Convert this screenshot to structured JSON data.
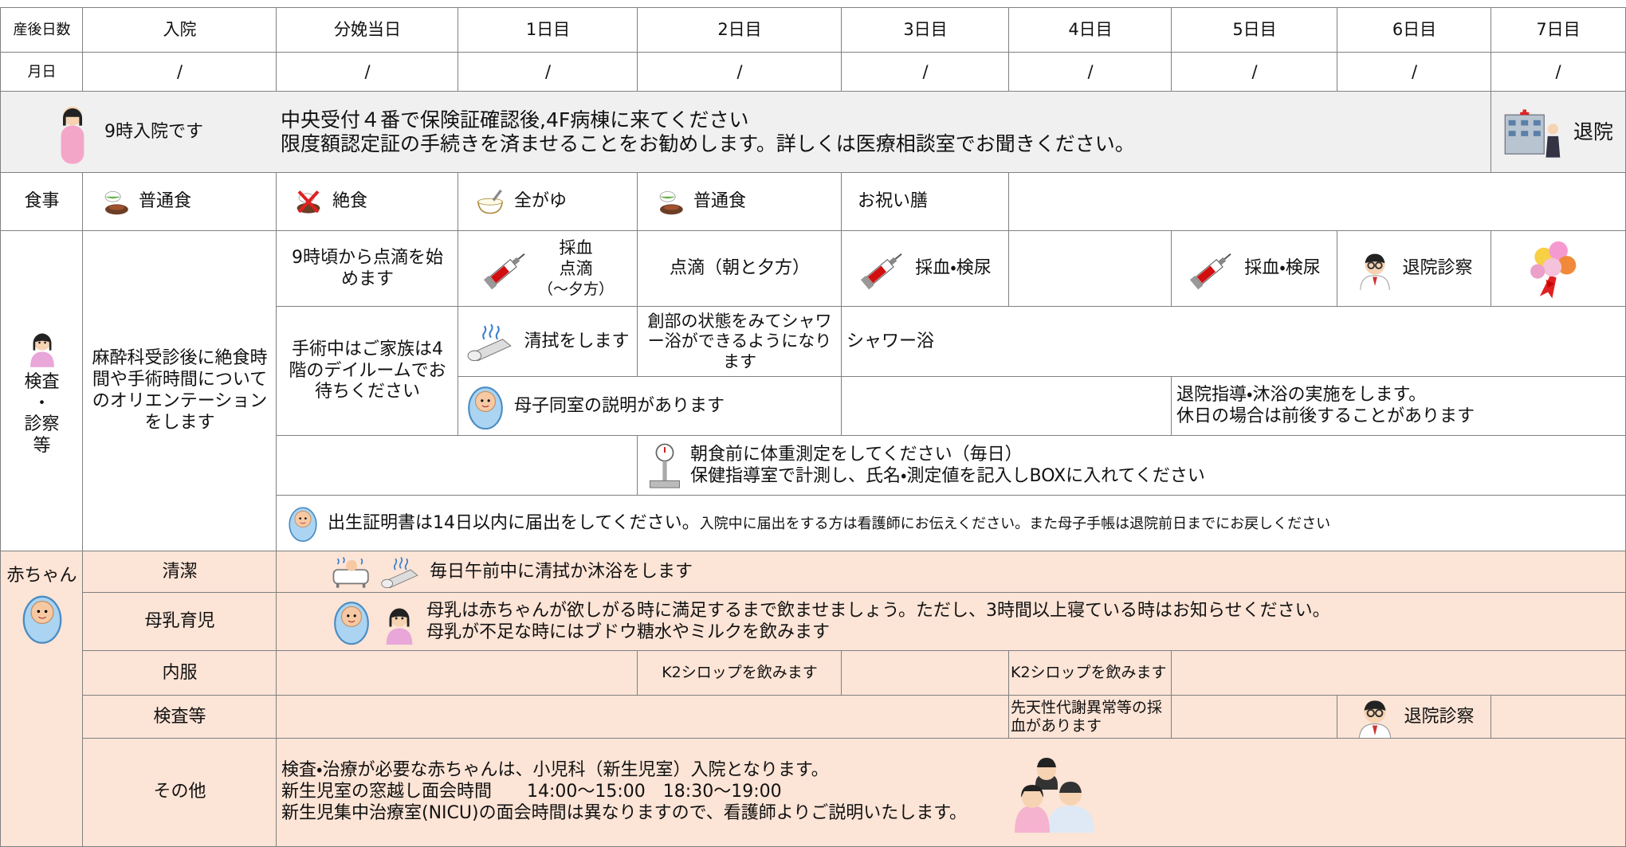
{
  "header": {
    "days_label": "産後日数",
    "days": [
      "入院",
      "分娩当日",
      "1日目",
      "2日目",
      "3日目",
      "4日目",
      "5日目",
      "6日目",
      "7日目"
    ],
    "date_label": "月日",
    "dates": [
      "/",
      "/",
      "/",
      "/",
      "/",
      "/",
      "/",
      "/",
      "/"
    ]
  },
  "admission": {
    "note": "9時入院です",
    "info": [
      "中央受付４番で保険証確認後,4F病棟に来てください",
      "限度額認定証の手続きを済ませることをお勧めします。詳しくは医療相談室でお聞きください。"
    ],
    "discharge": "退院"
  },
  "meals": {
    "label": "食事",
    "items": [
      "普通食",
      "絶食",
      "全がゆ",
      "普通食",
      "お祝い膳"
    ]
  },
  "mother_care": {
    "label": [
      "検査",
      "・",
      "診察",
      "等"
    ],
    "orientation": "麻酔科受診後に絶食時間や手術時間についてのオリエンテーションをします",
    "drip_start": "9時頃から点滴を始めます",
    "day1_tests": [
      "採血",
      "点滴",
      "（〜夕方）"
    ],
    "day2_drip": "点滴（朝と夕方）",
    "day3_tests": "採血・検尿",
    "day5_tests": "採血・検尿",
    "discharge_exam": "退院診察",
    "family_wait": "手術中はご家族は4階のデイルームでお待ちください",
    "wipe": "清拭をします",
    "shower_note": "創部の状態をみてシャワー浴ができるようになります",
    "shower": "シャワー浴",
    "rooming_in": "母子同室の説明があります",
    "discharge_guidance": [
      "退院指導・沐浴の実施をします。",
      "休日の場合は前後することがあります"
    ],
    "weight": [
      "朝食前に体重測定をしてください（毎日）",
      "保健指導室で計測し、氏名・測定値を記入しBOXに入れてください"
    ],
    "birth_certificate": "出生証明書は14日以内に届出をしてください。",
    "birth_certificate_note": "入院中に届出をする方は看護師にお伝えください。また母子手帳は退院前日までにお戻しください"
  },
  "baby": {
    "label": "赤ちゃん",
    "hygiene": {
      "label": "清潔",
      "text": "毎日午前中に清拭か沐浴をします"
    },
    "breastfeeding": {
      "label": "母乳育児",
      "text": [
        "母乳は赤ちゃんが欲しがる時に満足するまで飲ませましょう。ただし、3時間以上寝ている時はお知らせください。",
        "母乳が不足な時にはブドウ糖水やミルクを飲みます"
      ]
    },
    "medication": {
      "label": "内服",
      "day2": "K2シロップを飲みます",
      "day4": "K2シロップを飲みます"
    },
    "tests": {
      "label": "検査等",
      "day4": "先天性代謝異常等の採血があります",
      "day6": "退院診察"
    },
    "other": {
      "label": "その他",
      "text": [
        "検査・治療が必要な赤ちゃんは、小児科（新生児室）入院となります。",
        "新生児室の窓越し面会時間　　14:00〜15:00　18:30〜19:00",
        "新生児集中治療室(NICU)の面会時間は異なりますので、看護師よりご説明いたします。"
      ]
    }
  }
}
